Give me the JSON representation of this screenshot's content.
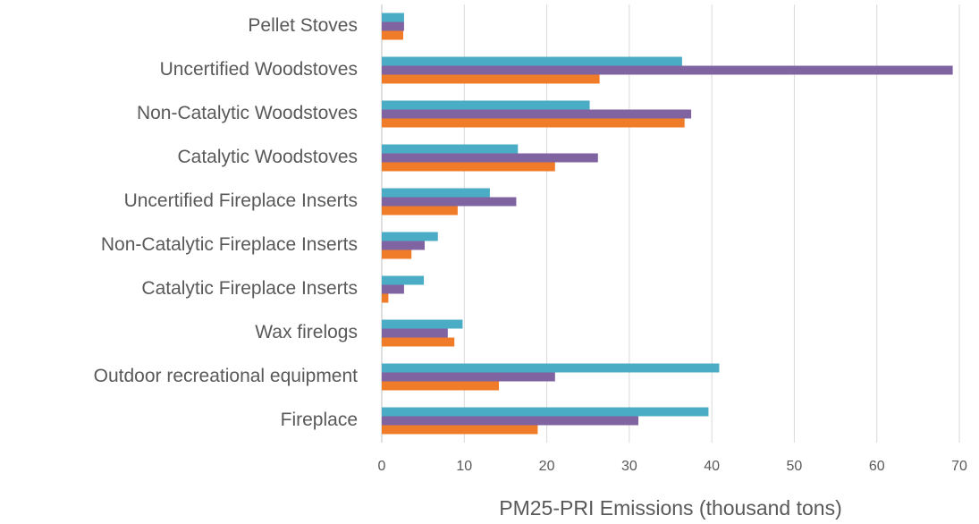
{
  "chart_data": {
    "type": "hbar",
    "x_label": "PM25-PRI Emissions (thousand tons)",
    "categories": [
      "Pellet Stoves",
      "Uncertified Woodstoves",
      "Non-Catalytic Woodstoves",
      "Catalytic Woodstoves",
      "Uncertified Fireplace Inserts",
      "Non-Catalytic Fireplace Inserts",
      "Catalytic Fireplace Inserts",
      "Wax firelogs",
      "Outdoor recreational equipment",
      "Fireplace"
    ],
    "series": [
      {
        "color": "#4bacc6",
        "values": [
          2.7,
          36.4,
          25.2,
          16.5,
          13.1,
          6.8,
          5.1,
          9.8,
          40.9,
          39.6
        ]
      },
      {
        "color": "#8064a2",
        "values": [
          2.7,
          69.2,
          37.5,
          26.2,
          16.3,
          5.2,
          2.7,
          8.0,
          21.0,
          31.1
        ]
      },
      {
        "color": "#f07c2a",
        "values": [
          2.6,
          26.4,
          36.7,
          21.0,
          9.2,
          3.6,
          0.8,
          8.8,
          14.2,
          18.9
        ]
      }
    ],
    "xlim": [
      0,
      70
    ],
    "xticks": [
      0,
      10,
      20,
      30,
      40,
      50,
      60,
      70
    ],
    "grid": true
  }
}
